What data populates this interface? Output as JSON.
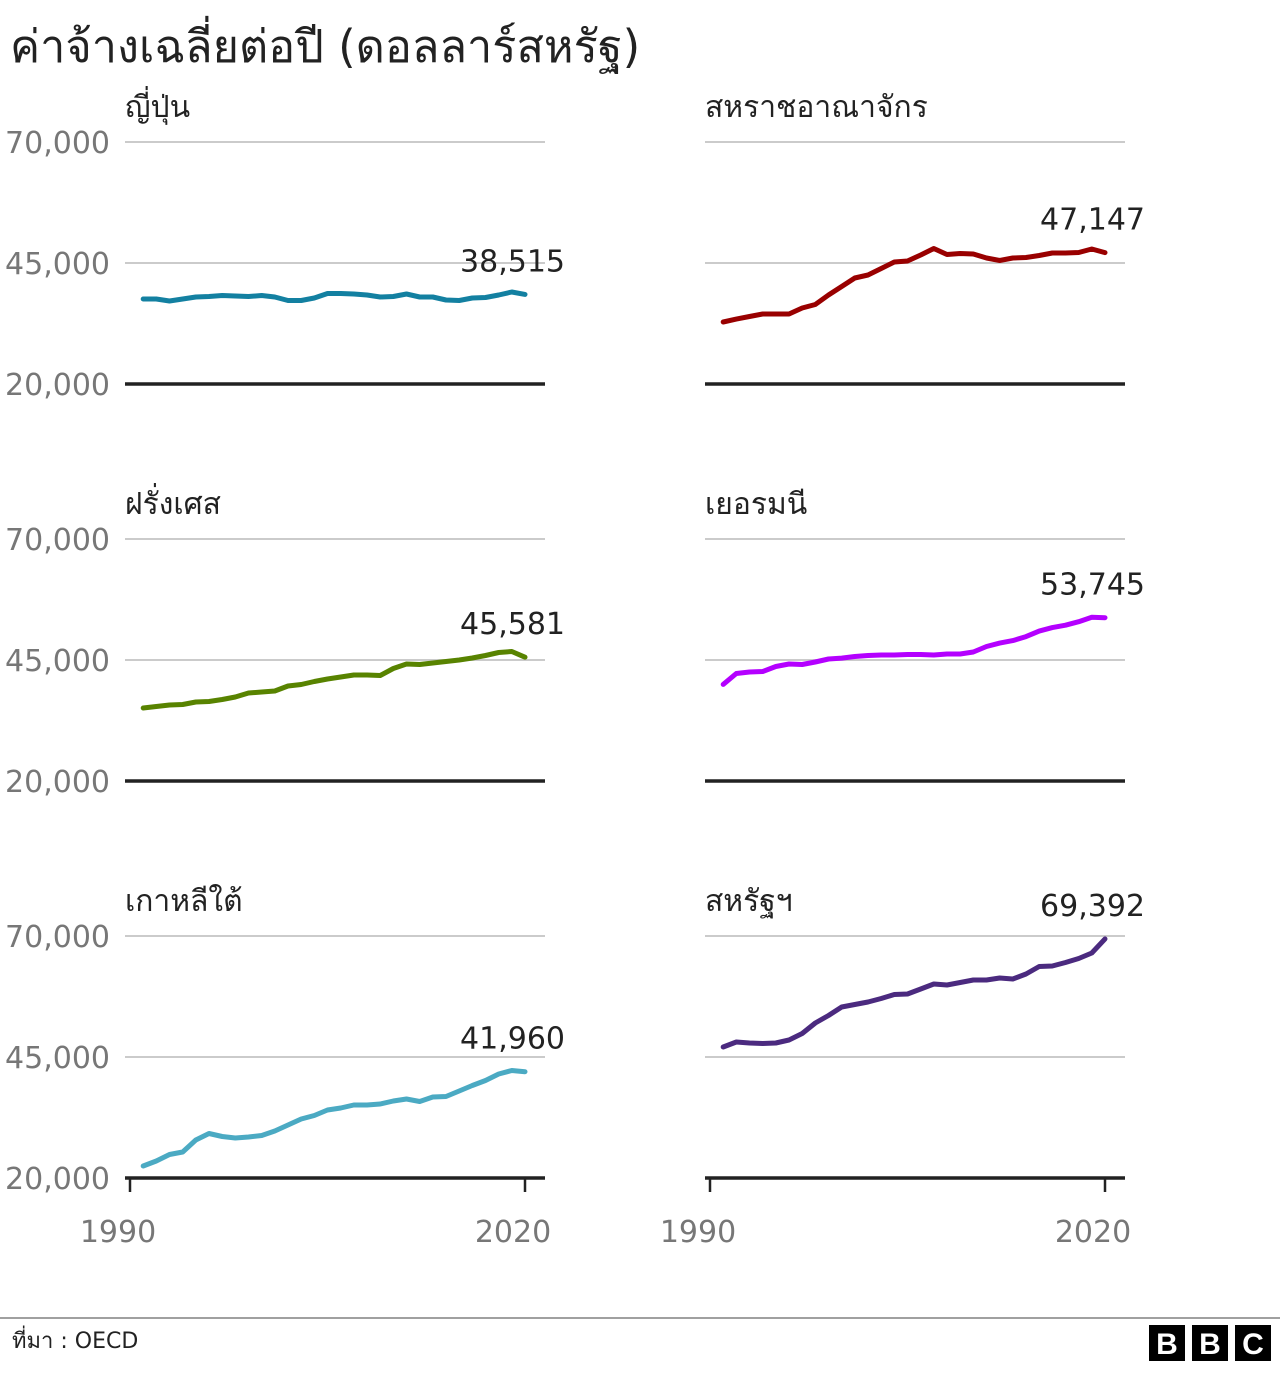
{
  "chart_data": {
    "type": "line",
    "title": "ค่าจ้างเฉลี่ยต่อปี (ดอลลาร์สหรัฐ)",
    "xlabel": "",
    "ylabel": "",
    "xlim": [
      1990,
      2020
    ],
    "ylim": [
      20000,
      70000
    ],
    "yticks": [
      70000,
      45000,
      20000
    ],
    "ytick_labels": [
      "70,000",
      "45,000",
      "20,000"
    ],
    "xticks": [
      1990,
      2020
    ],
    "xtick_labels": [
      "1990",
      "2020"
    ],
    "x": [
      1991,
      1992,
      1993,
      1994,
      1995,
      1996,
      1997,
      1998,
      1999,
      2000,
      2001,
      2002,
      2003,
      2004,
      2005,
      2006,
      2007,
      2008,
      2009,
      2010,
      2011,
      2012,
      2013,
      2014,
      2015,
      2016,
      2017,
      2018,
      2019,
      2020
    ],
    "series": [
      {
        "name": "ญี่ปุ่น",
        "color": "#1380A1",
        "values": [
          37560,
          37560,
          37150,
          37560,
          37975,
          38080,
          38285,
          38180,
          38080,
          38285,
          37975,
          37250,
          37250,
          37770,
          38700,
          38700,
          38595,
          38390,
          37975,
          38080,
          38595,
          37975,
          37975,
          37355,
          37250,
          37770,
          37870,
          38390,
          39010,
          38515
        ],
        "end_label": "38,515"
      },
      {
        "name": "สหราชอาณาจักร",
        "color": "#990000",
        "values": [
          32800,
          33400,
          33950,
          34460,
          34460,
          34460,
          35700,
          36420,
          38390,
          40140,
          41900,
          42520,
          43860,
          45200,
          45410,
          46650,
          47995,
          46750,
          46960,
          46860,
          46030,
          45520,
          46030,
          46130,
          46550,
          47060,
          47060,
          47160,
          47890,
          47147
        ],
        "end_label": "47,147"
      },
      {
        "name": "ฝรั่งเศส",
        "color": "#588300",
        "values": [
          35080,
          35390,
          35700,
          35800,
          36320,
          36420,
          36830,
          37350,
          38180,
          38390,
          38590,
          39620,
          39930,
          40550,
          41070,
          41480,
          41900,
          41900,
          41800,
          43240,
          44170,
          44070,
          44380,
          44690,
          45000,
          45410,
          45930,
          46550,
          46750,
          45581
        ],
        "end_label": "45,581"
      },
      {
        "name": "เยอรมนี",
        "color": "#B400FF",
        "values": [
          39960,
          42220,
          42530,
          42630,
          43660,
          44170,
          44070,
          44580,
          45200,
          45400,
          45720,
          45930,
          46030,
          46030,
          46130,
          46130,
          46030,
          46240,
          46240,
          46650,
          47780,
          48500,
          49010,
          49840,
          50970,
          51690,
          52200,
          52920,
          53850,
          53745
        ],
        "end_label": "53,745"
      },
      {
        "name": "เกาหลีใต้",
        "color": "#4BAAC3",
        "values": [
          22480,
          23510,
          24850,
          25370,
          27850,
          29190,
          28570,
          28260,
          28470,
          28780,
          29710,
          30950,
          32190,
          32910,
          34050,
          34460,
          35080,
          35080,
          35290,
          35910,
          36320,
          35800,
          36740,
          36840,
          37980,
          39110,
          40150,
          41490,
          42210,
          41960
        ],
        "end_label": "41,960"
      },
      {
        "name": "สหรัฐฯ",
        "color": "#4B2A7F",
        "values": [
          47070,
          48100,
          47890,
          47790,
          47890,
          48510,
          49850,
          52020,
          53570,
          55330,
          55840,
          56360,
          57080,
          57910,
          58010,
          59040,
          60080,
          59870,
          60390,
          60910,
          60910,
          61320,
          61120,
          62150,
          63700,
          63800,
          64530,
          65350,
          66490,
          69392
        ],
        "end_label": "69,392"
      }
    ]
  },
  "footer": {
    "source": "ที่มา : OECD"
  },
  "logo": {
    "letters": [
      "B",
      "B",
      "C"
    ]
  },
  "colors": {
    "grid": "#cbcbcb",
    "baseline": "#222222",
    "divider": "#a0a0a0",
    "logo_box": "#000000"
  }
}
